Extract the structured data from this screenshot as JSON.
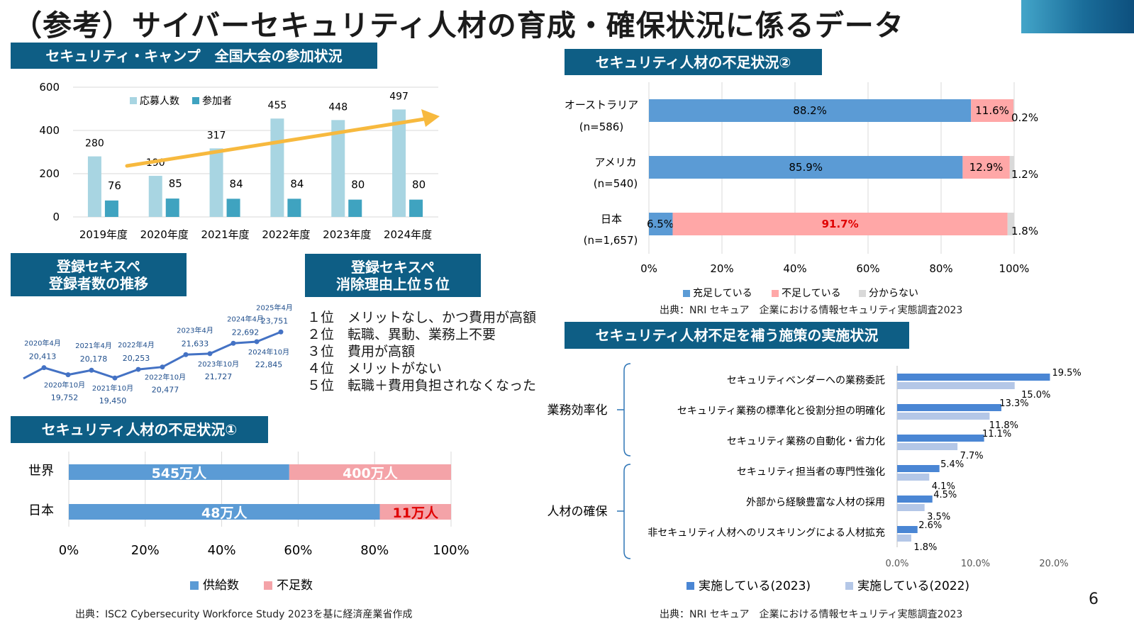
{
  "page": {
    "title": "（参考）サイバーセキュリティ人材の育成・確保状況に係るデータ",
    "page_number": "6",
    "colors": {
      "header_bg": "#0e5e85",
      "arrow": "#f7b93e"
    }
  },
  "sections": {
    "camp": "セキュリティ・キャンプ　全国大会の参加状況",
    "sekispe_trend": "登録セキスペ\n登録者数の推移",
    "sekispe_reasons": "登録セキスペ\n消除理由上位５位",
    "shortage1": "セキュリティ人材の不足状況①",
    "shortage2": "セキュリティ人材の不足状況②",
    "measures": "セキュリティ人材不足を補う施策の実施状況"
  },
  "reasons": [
    "１位　メリットなし、かつ費用が高額",
    "２位　転職、異動、業務上不要",
    "３位　費用が高額",
    "４位　メリットがない",
    "５位　転職＋費用負担されなくなった"
  ],
  "sources": {
    "shortage1": "出典：ISC2 Cybersecurity Workforce Study 2023を基に経済産業省作成",
    "shortage2": "出典：NRI セキュア　企業における情報セキュリティ実態調査2023",
    "measures": "出典：NRI セキュア　企業における情報セキュリティ実態調査2023"
  },
  "chart_data": [
    {
      "id": "camp",
      "type": "bar",
      "categories": [
        "2019年度",
        "2020年度",
        "2021年度",
        "2022年度",
        "2023年度",
        "2024年度"
      ],
      "series": [
        {
          "name": "応募人数",
          "values": [
            280,
            190,
            317,
            455,
            448,
            497
          ],
          "color": "#a8d5e2"
        },
        {
          "name": "参加者",
          "values": [
            76,
            85,
            84,
            84,
            80,
            80
          ],
          "color": "#3fa3c0"
        }
      ],
      "ylim": [
        0,
        600
      ],
      "yticks": [
        0,
        200,
        400,
        600
      ],
      "legend": "top-left",
      "trend_arrow": true
    },
    {
      "id": "sekispe",
      "type": "line",
      "color": "#4472c4",
      "points": [
        {
          "date": "",
          "value": 19400,
          "label": ""
        },
        {
          "date": "2020年4月",
          "value": 20413,
          "label": "20,413"
        },
        {
          "date": "2020年10月",
          "value": 19752,
          "label": "19,752"
        },
        {
          "date": "2021年4月",
          "value": 20178,
          "label": "20,178"
        },
        {
          "date": "2021年10月",
          "value": 19450,
          "label": "19,450"
        },
        {
          "date": "2022年4月",
          "value": 20253,
          "label": "20,253"
        },
        {
          "date": "2022年10月",
          "value": 20477,
          "label": "20,477"
        },
        {
          "date": "2023年4月",
          "value": 21633,
          "label": "21,633"
        },
        {
          "date": "2023年10月",
          "value": 21727,
          "label": "21,727"
        },
        {
          "date": "2024年4月",
          "value": 22692,
          "label": "22,692"
        },
        {
          "date": "2024年10月",
          "value": 22845,
          "label": "22,845"
        },
        {
          "date": "2025年4月",
          "value": 23751,
          "label": "23,751"
        }
      ]
    },
    {
      "id": "shortage1",
      "type": "bar",
      "orientation": "horizontal",
      "stacked_percent": true,
      "categories": [
        "世界",
        "日本"
      ],
      "series": [
        {
          "name": "供給数",
          "values": [
            545,
            48
          ],
          "labels": [
            "545万人",
            "48万人"
          ],
          "color": "#5b9bd5"
        },
        {
          "name": "不足数",
          "values": [
            400,
            11
          ],
          "labels": [
            "400万人",
            "11万人"
          ],
          "color": "#f4a3a8"
        }
      ],
      "xticks": [
        "0%",
        "20%",
        "40%",
        "60%",
        "80%",
        "100%"
      ],
      "legend": "bottom"
    },
    {
      "id": "shortage2",
      "type": "bar",
      "orientation": "horizontal",
      "stacked_percent": true,
      "categories": [
        "オーストラリア",
        "アメリカ",
        "日本"
      ],
      "category_notes": [
        "(n=586)",
        "(n=540)",
        "(n=1,657)"
      ],
      "series": [
        {
          "name": "充足している",
          "values": [
            88.2,
            85.9,
            6.5
          ],
          "labels": [
            "88.2%",
            "85.9%",
            "6.5%"
          ],
          "color": "#5b9bd5"
        },
        {
          "name": "不足している",
          "values": [
            11.6,
            12.9,
            91.7
          ],
          "labels": [
            "11.6%",
            "12.9%",
            "91.7%"
          ],
          "color": "#ffa7a7"
        },
        {
          "name": "分からない",
          "values": [
            0.2,
            1.2,
            1.8
          ],
          "labels": [
            "0.2%",
            "1.2%",
            "1.8%"
          ],
          "color": "#d9d9d9"
        }
      ],
      "xticks": [
        "0%",
        "20%",
        "40%",
        "60%",
        "80%",
        "100%"
      ],
      "legend": "bottom"
    },
    {
      "id": "measures",
      "type": "bar",
      "orientation": "horizontal",
      "groups": [
        {
          "name": "業務効率化",
          "items": [
            0,
            1,
            2
          ]
        },
        {
          "name": "人材の確保",
          "items": [
            3,
            4,
            5
          ]
        }
      ],
      "categories": [
        "セキュリティベンダーへの業務委託",
        "セキュリティ業務の標準化と役割分担の明確化",
        "セキュリティ業務の自動化・省力化",
        "セキュリティ担当者の専門性強化",
        "外部から経験豊富な人材の採用",
        "非セキュリティ人材へのリスキリングによる人材拡充"
      ],
      "series": [
        {
          "name": "実施している(2023)",
          "values": [
            19.5,
            13.3,
            11.1,
            5.4,
            4.5,
            2.6
          ],
          "labels": [
            "19.5%",
            "13.3%",
            "11.1%",
            "5.4%",
            "4.5%",
            "2.6%"
          ],
          "color": "#4a86d4"
        },
        {
          "name": "実施している(2022)",
          "values": [
            15.0,
            11.8,
            7.7,
            4.1,
            3.5,
            1.8
          ],
          "labels": [
            "15.0%",
            "11.8%",
            "7.7%",
            "4.1%",
            "3.5%",
            "1.8%"
          ],
          "color": "#b4c7e7"
        }
      ],
      "xlim": [
        0,
        20
      ],
      "xticks": [
        "0.0%",
        "10.0%",
        "20.0%"
      ],
      "legend": "bottom"
    }
  ]
}
